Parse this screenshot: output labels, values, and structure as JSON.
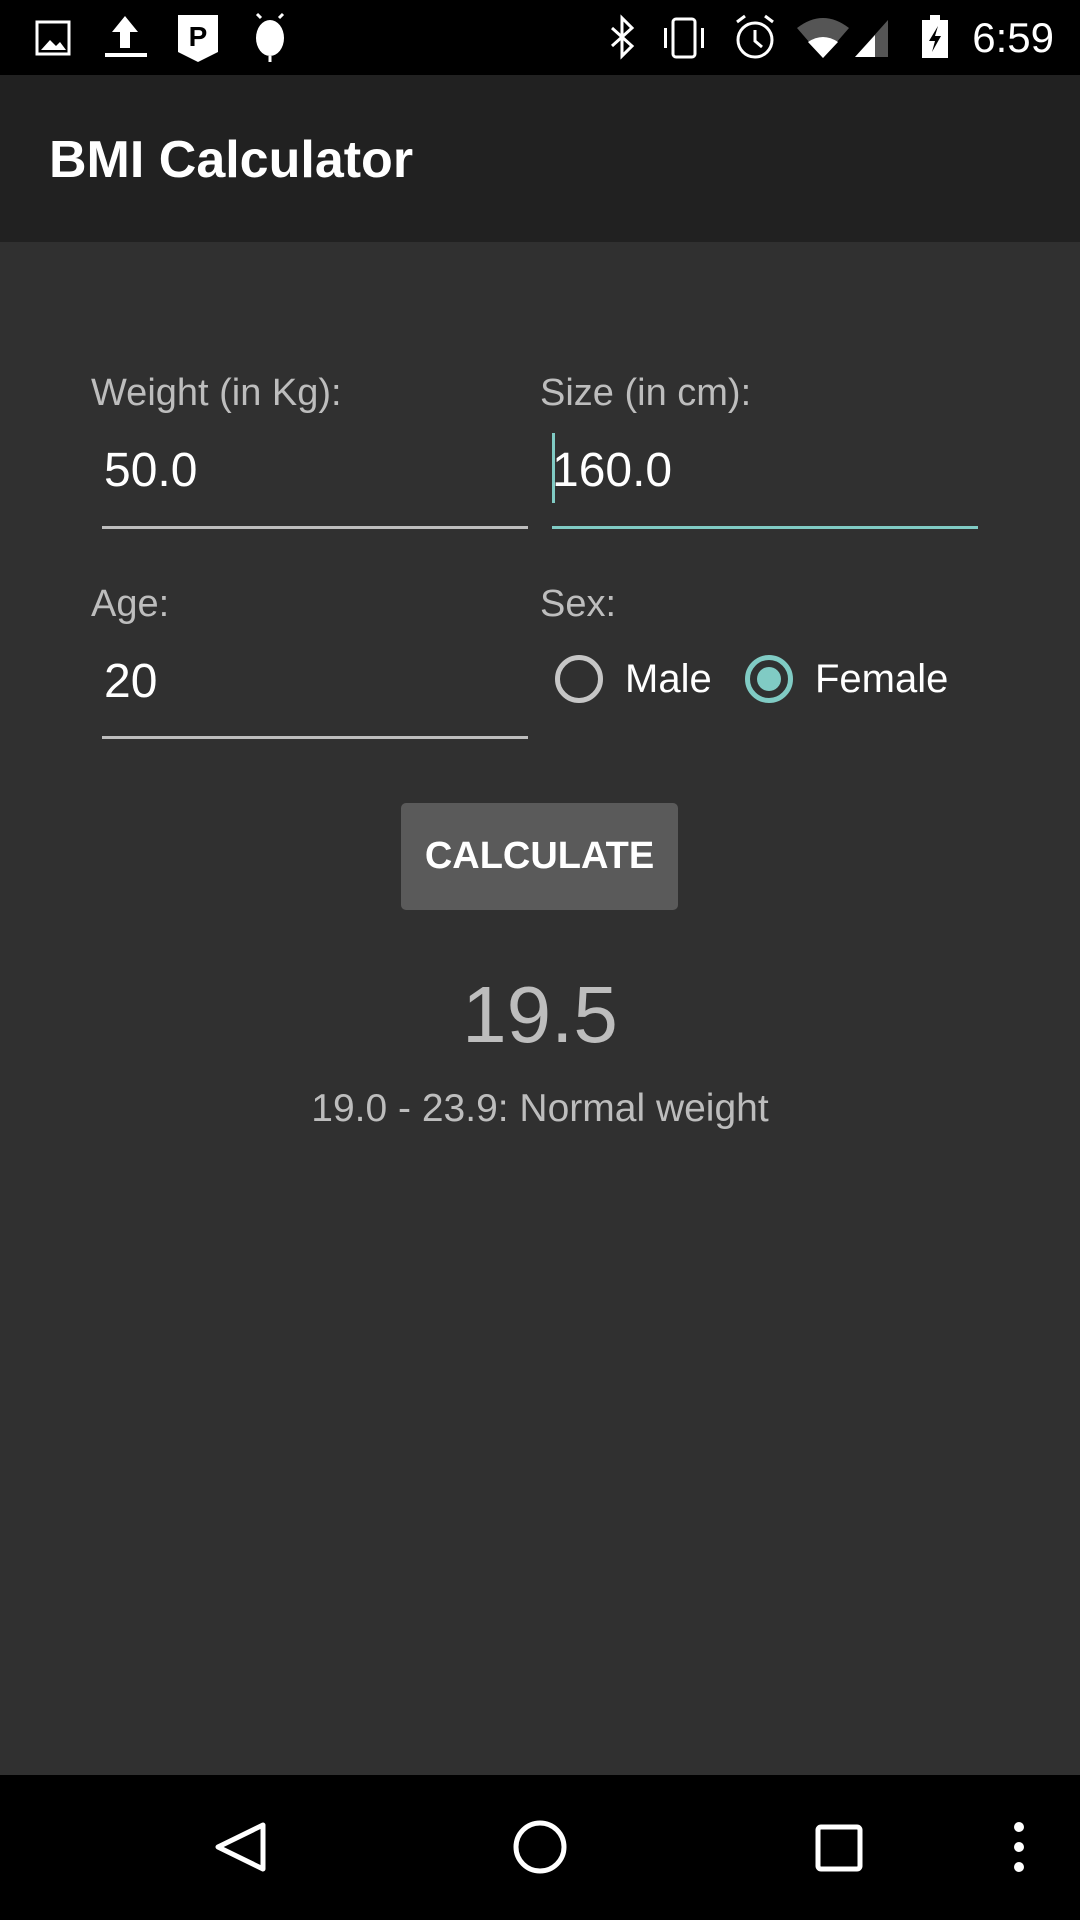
{
  "status_bar": {
    "time": "6:59",
    "left_icons": [
      "image-icon",
      "upload-icon",
      "parking-icon",
      "android-icon"
    ],
    "right_icons": [
      "bluetooth-icon",
      "vibrate-icon",
      "alarm-icon",
      "wifi-icon",
      "signal-icon",
      "battery-charging-icon"
    ]
  },
  "app_bar": {
    "title": "BMI Calculator"
  },
  "form": {
    "weight": {
      "label": "Weight (in Kg):",
      "value": "50.0"
    },
    "size": {
      "label": "Size (in cm):",
      "value": "160.0",
      "focused": true
    },
    "age": {
      "label": "Age:",
      "value": "20"
    },
    "sex": {
      "label": "Sex:",
      "options": [
        {
          "label": "Male",
          "selected": false
        },
        {
          "label": "Female",
          "selected": true
        }
      ]
    },
    "calculate_label": "CALCULATE"
  },
  "result": {
    "bmi": "19.5",
    "category": "19.0 - 23.9: Normal weight"
  },
  "colors": {
    "accent": "#80cbc4",
    "background": "#303030",
    "app_bar": "#212121",
    "button": "#5a5a5a"
  },
  "nav_bar": {
    "icons": [
      "back-icon",
      "home-icon",
      "recents-icon",
      "menu-icon"
    ]
  }
}
